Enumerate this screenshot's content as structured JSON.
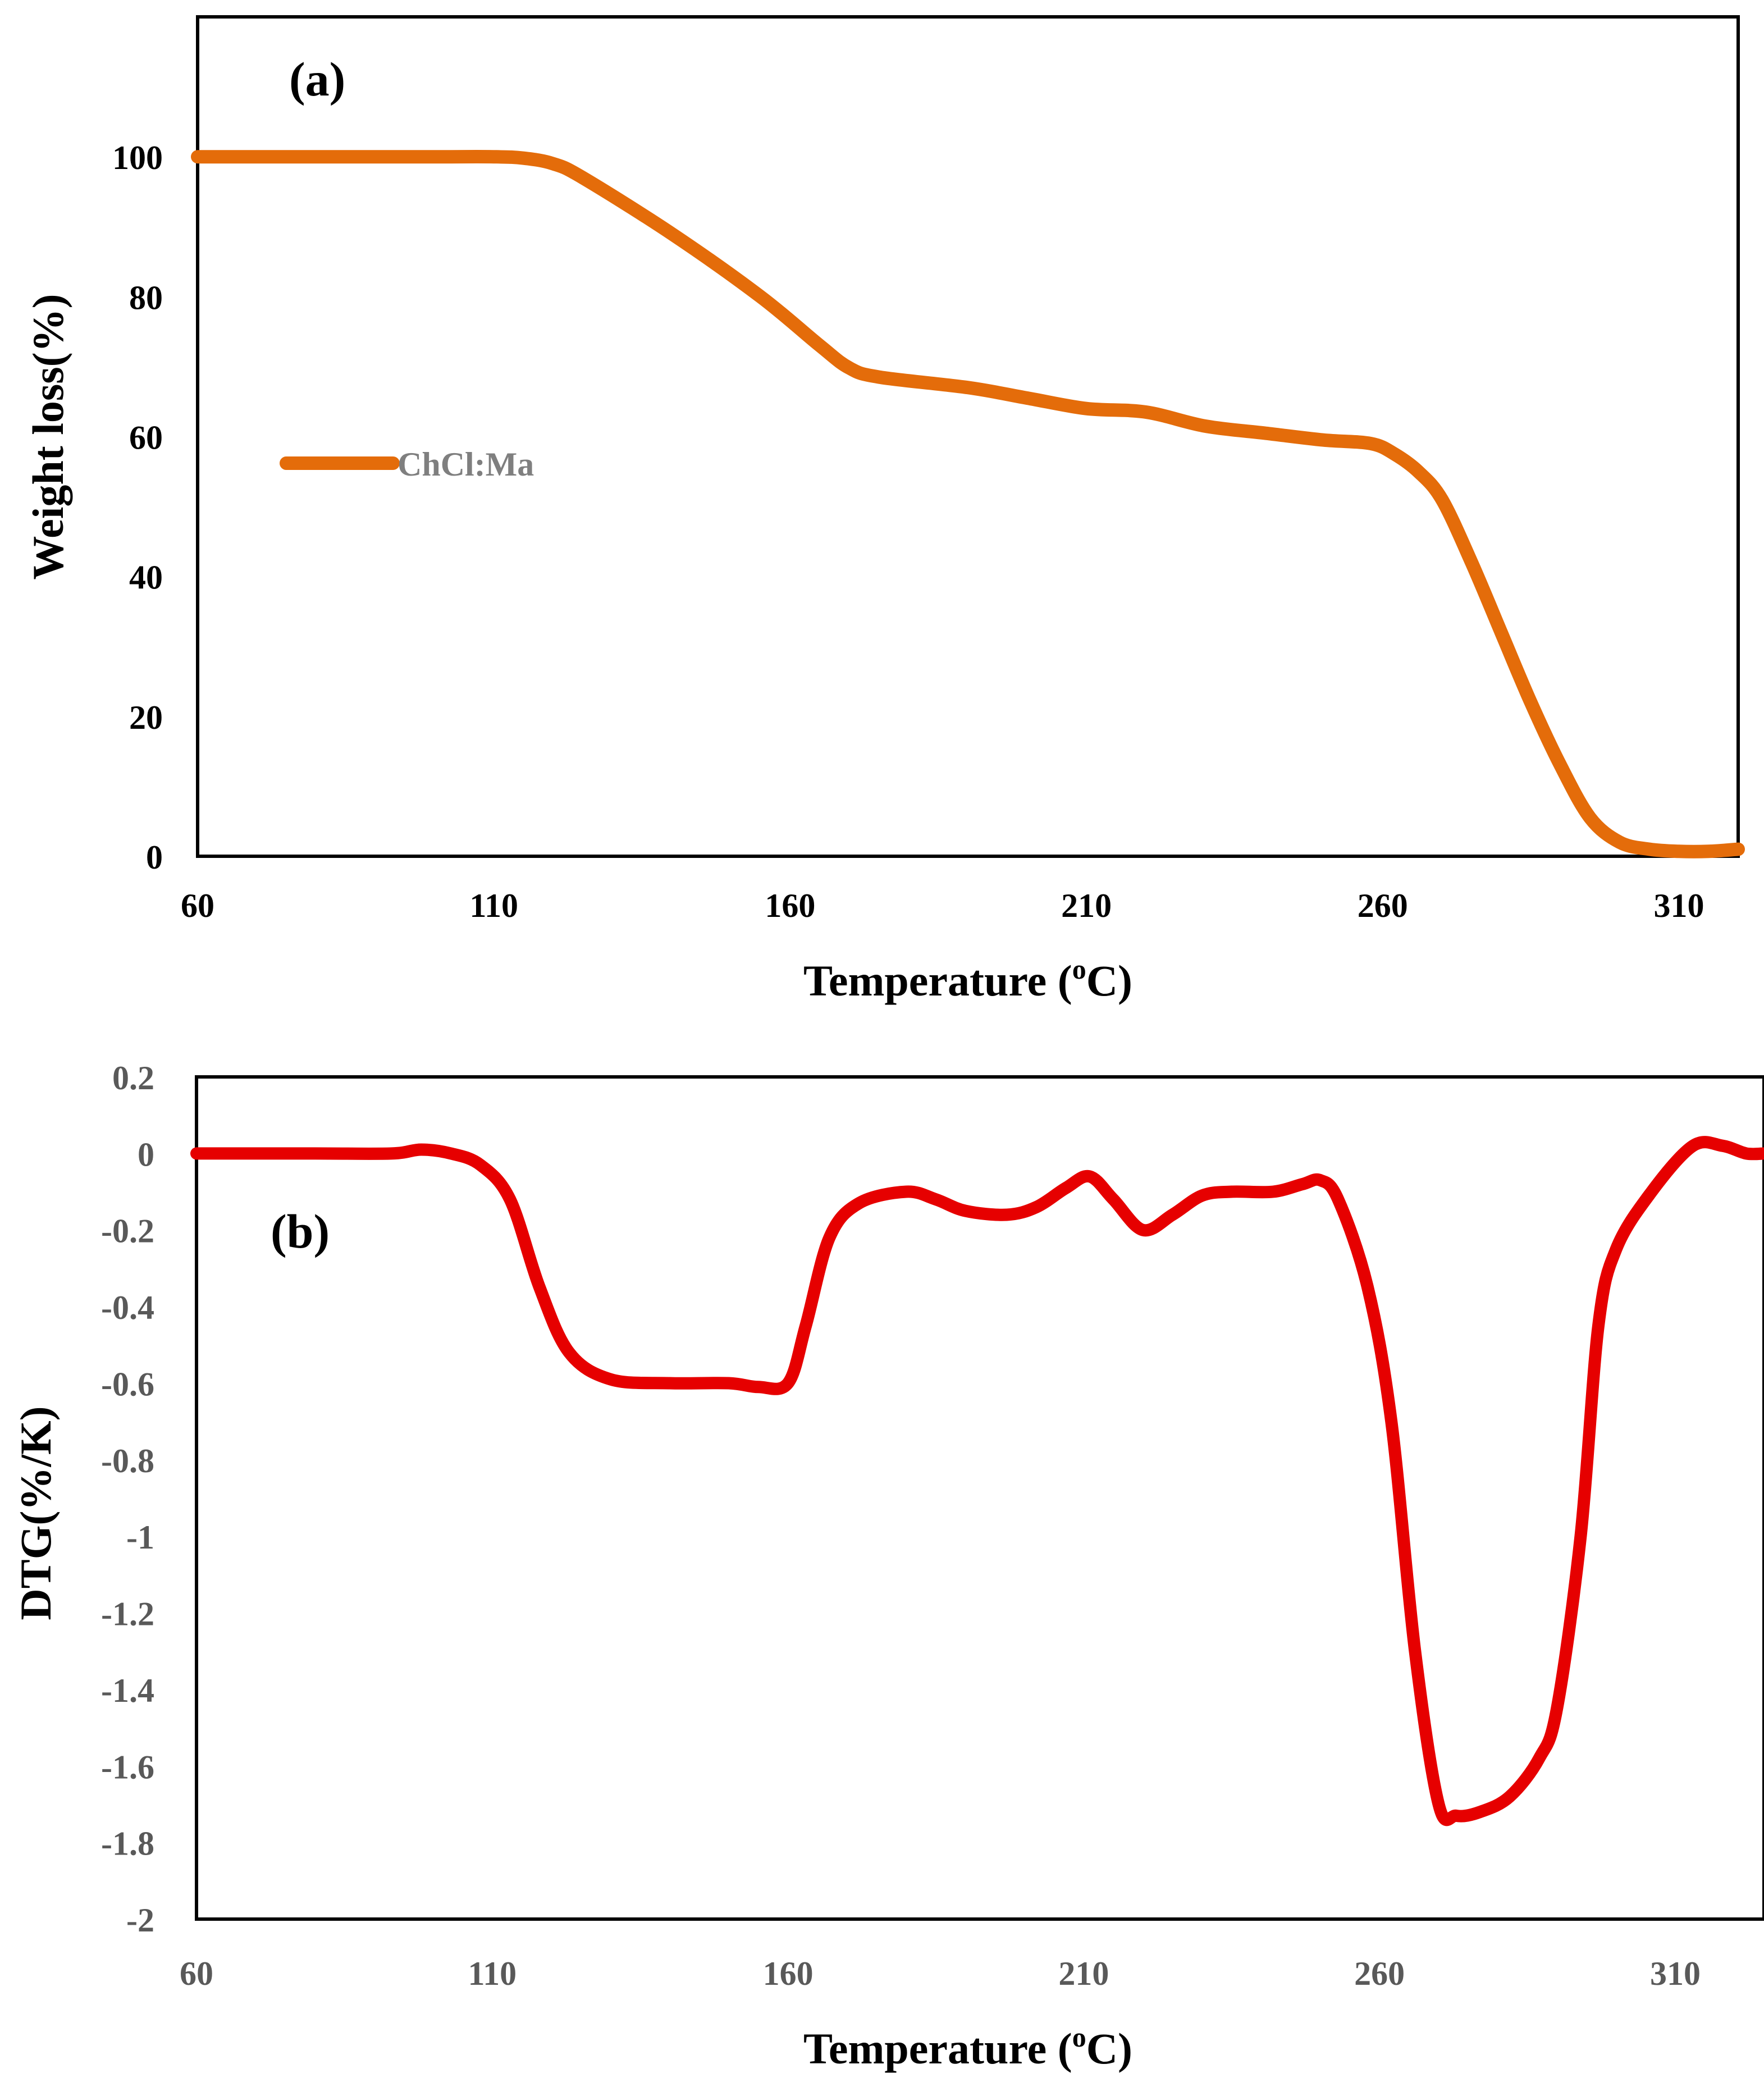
{
  "chart_data": [
    {
      "type": "line",
      "panel_label": "(a)",
      "title": "",
      "xlabel": "Temperature (°C)",
      "xlabel_parts": {
        "main": "Temperature (",
        "sup": "o",
        "unit": "C)"
      },
      "ylabel": "Weight loss(%)",
      "xlim": [
        60,
        320
      ],
      "ylim": [
        0,
        120
      ],
      "xticks": [
        60,
        110,
        160,
        210,
        260,
        310
      ],
      "yticks": [
        0,
        20,
        40,
        60,
        80,
        100
      ],
      "grid": false,
      "legend_position": "left-middle",
      "color": "#E46C0A",
      "series": [
        {
          "name": "ChCl:Ma",
          "x": [
            60,
            80,
            100,
            110,
            115,
            120,
            125,
            140,
            155,
            165,
            170,
            175,
            190,
            200,
            210,
            220,
            230,
            240,
            250,
            258,
            262,
            266,
            270,
            275,
            280,
            285,
            290,
            295,
            300,
            305,
            310,
            315,
            320
          ],
          "y": [
            100,
            100,
            100,
            100,
            99.8,
            99,
            97,
            89,
            80,
            73,
            69.8,
            68.5,
            67,
            65.5,
            64,
            63.5,
            61.5,
            60.5,
            59.5,
            59,
            57.5,
            55,
            51,
            42,
            32,
            22,
            13,
            5.5,
            2,
            1,
            0.7,
            0.7,
            1
          ]
        }
      ]
    },
    {
      "type": "line",
      "panel_label": "(b)",
      "title": "",
      "xlabel": "Temperature (°C)",
      "xlabel_parts": {
        "main": "Temperature (",
        "sup": "o",
        "unit": "C)"
      },
      "ylabel": "DTG(%/K)",
      "xlim": [
        60,
        325
      ],
      "ylim": [
        -2,
        0.2
      ],
      "xticks": [
        60,
        110,
        160,
        210,
        260,
        310
      ],
      "yticks": [
        0.2,
        0,
        -0.2,
        -0.4,
        -0.6,
        -0.8,
        -1,
        -1.2,
        -1.4,
        -1.6,
        -1.8,
        -2
      ],
      "grid": false,
      "color": "#E60000",
      "series": [
        {
          "name": "DTG",
          "x": [
            60,
            80,
            93,
            98,
            103,
            108,
            113,
            118,
            123,
            130,
            140,
            150,
            155,
            160,
            163,
            167,
            172,
            180,
            185,
            190,
            197,
            202,
            207,
            211,
            215,
            220,
            225,
            230,
            235,
            242,
            247,
            250,
            253,
            258,
            262,
            266,
            270,
            273,
            277,
            282,
            287,
            290,
            294,
            297,
            300,
            306,
            313,
            318,
            322,
            325
          ],
          "y": [
            0,
            0,
            0,
            0.01,
            0,
            -0.03,
            -0.12,
            -0.35,
            -0.52,
            -0.59,
            -0.6,
            -0.6,
            -0.61,
            -0.6,
            -0.45,
            -0.22,
            -0.13,
            -0.1,
            -0.12,
            -0.15,
            -0.16,
            -0.14,
            -0.09,
            -0.06,
            -0.12,
            -0.2,
            -0.16,
            -0.11,
            -0.1,
            -0.1,
            -0.08,
            -0.07,
            -0.12,
            -0.35,
            -0.7,
            -1.3,
            -1.7,
            -1.73,
            -1.72,
            -1.68,
            -1.58,
            -1.45,
            -1.0,
            -0.45,
            -0.25,
            -0.1,
            0.02,
            0.02,
            0,
            0
          ]
        }
      ]
    }
  ]
}
